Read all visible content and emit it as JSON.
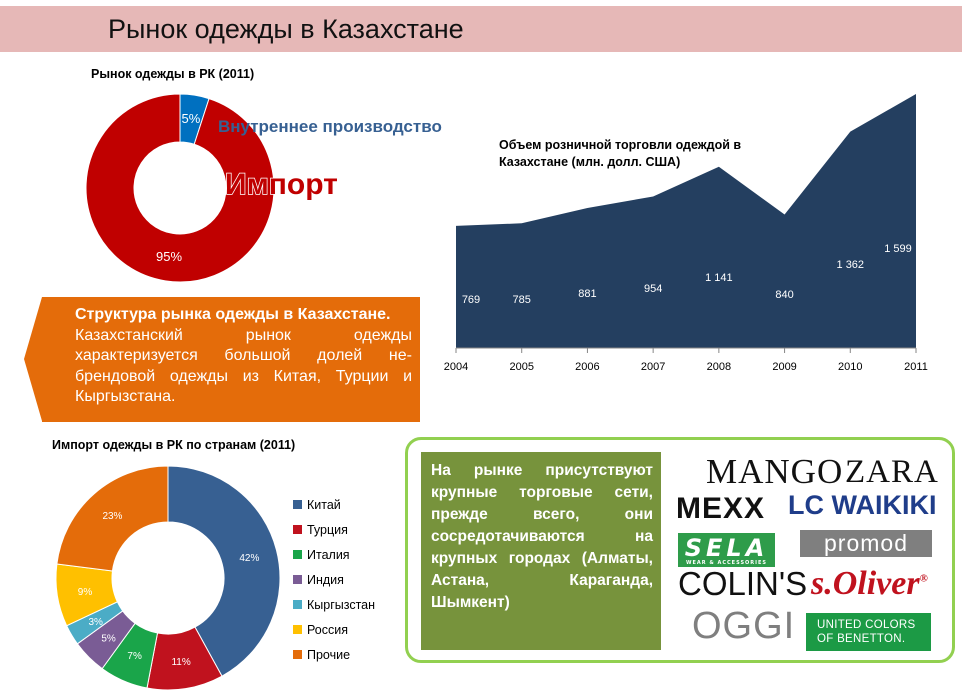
{
  "header": {
    "title": "Рынок одежды в Казахстане"
  },
  "chart_data": [
    {
      "type": "pie",
      "variant": "donut",
      "title": "Рынок одежды в РК (2011)",
      "slices": [
        {
          "label": "Внутреннее производство",
          "value": 5,
          "value_label": "5%",
          "color": "#0070c0"
        },
        {
          "label": "Импорт",
          "value": 95,
          "value_label": "95%",
          "color": "#c00000"
        }
      ]
    },
    {
      "type": "area",
      "title": "Объем розничной торговли одеждой в Казахстане (млн. долл. США)",
      "categories": [
        "2004",
        "2005",
        "2006",
        "2007",
        "2008",
        "2009",
        "2010",
        "2011"
      ],
      "values": [
        769,
        785,
        881,
        954,
        1141,
        840,
        1362,
        1599
      ],
      "value_labels": [
        "769",
        "785",
        "881",
        "954",
        "1 141",
        "840",
        "1 362",
        "1 599"
      ],
      "color": "#243f60",
      "ylim": [
        0,
        1750
      ],
      "grid": false
    },
    {
      "type": "pie",
      "variant": "donut",
      "title": "Импорт одежды в РК  по странам (2011)",
      "legend_position": "right",
      "slices": [
        {
          "label": "Китай",
          "value": 42,
          "value_label": "42%",
          "color": "#376092"
        },
        {
          "label": "Турция",
          "value": 11,
          "value_label": "11%",
          "color": "#c0121e"
        },
        {
          "label": "Италия",
          "value": 7,
          "value_label": "7%",
          "color": "#1aa54a"
        },
        {
          "label": "Индия",
          "value": 5,
          "value_label": "5%",
          "color": "#7a5c95"
        },
        {
          "label": "Кыргызстан",
          "value": 3,
          "value_label": "3%",
          "color": "#4bacc6"
        },
        {
          "label": "Россия",
          "value": 9,
          "value_label": "9%",
          "color": "#ffc000"
        },
        {
          "label": "Прочие",
          "value": 23,
          "value_label": "23%",
          "color": "#e46c0a"
        }
      ]
    }
  ],
  "callout": {
    "heading": "Структура рынка одежды в Казахстане.",
    "body": "Казахстанский рынок одежды характеризуется большой долей не-брендовой одежды из Китая, Турции и Кыргызстана."
  },
  "retail_box": {
    "text": "На рынке присутствуют крупные торговые сети, прежде всего, они сосредотачиваются на крупных городах (Алматы, Астана, Караганда, Шымкент)"
  },
  "logos": {
    "mango": "MANGO",
    "zara": "ZARA",
    "mexx": "MEXX",
    "lcwaikiki": "LC WAIKIKI",
    "sela": "SELA",
    "sela_tagline": "WEAR & ACCESSORIES",
    "promod": "promod",
    "colins": "COLIN'S",
    "soliver": "s.Oliver",
    "soliver_mark": "®",
    "oggi": "OGGI",
    "benetton_line1": "UNITED COLORS",
    "benetton_line2": "OF BENETTON."
  }
}
